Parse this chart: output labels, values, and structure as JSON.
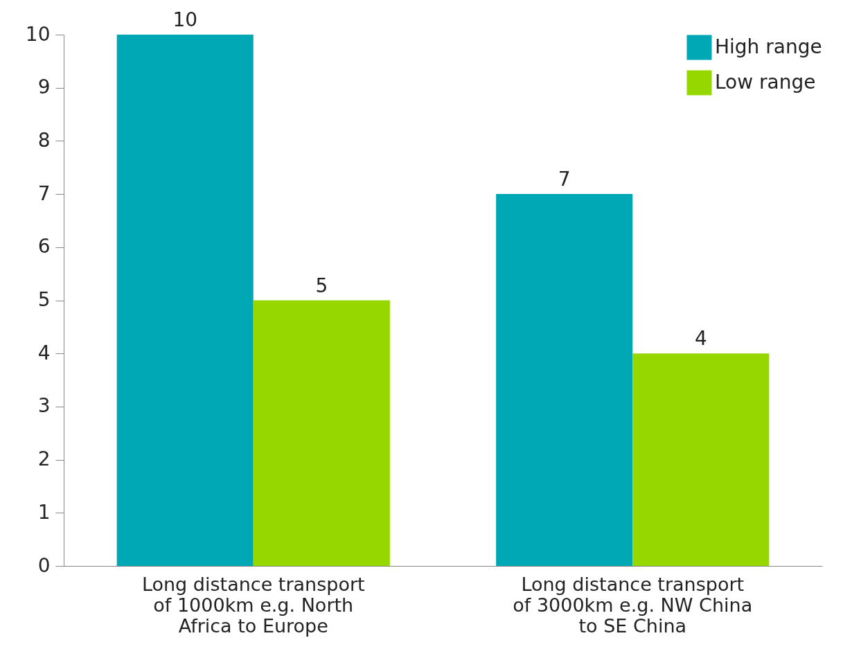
{
  "chart_data": {
    "type": "bar",
    "categories": [
      "Long distance transport of 1000km e.g. North Africa to Europe",
      "Long distance transport of 3000km e.g. NW China to SE China"
    ],
    "series": [
      {
        "name": "High range",
        "color": "#00a8b5",
        "values": [
          10,
          7
        ]
      },
      {
        "name": "Low range",
        "color": "#97d700",
        "values": [
          5,
          4
        ]
      }
    ],
    "ylim": [
      0,
      10
    ],
    "yticks": [
      0,
      1,
      2,
      3,
      4,
      5,
      6,
      7,
      8,
      9,
      10
    ],
    "grid": false,
    "legend": "top right",
    "data_labels": true
  }
}
